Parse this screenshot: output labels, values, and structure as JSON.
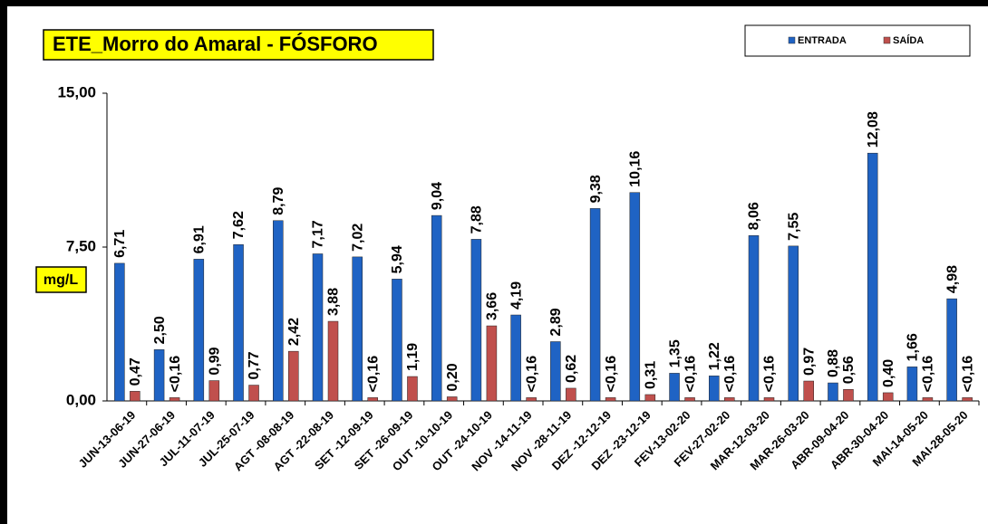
{
  "chart_data": {
    "type": "bar",
    "title": "ETE_Morro do Amaral - FÓSFORO",
    "y_label": "mg/L",
    "categories": [
      "JUN-13-06-19",
      "JUN-27-06-19",
      "JUL-11-07-19",
      "JUL-25-07-19",
      "AGT -08-08-19",
      "AGT -22-08-19",
      "SET -12-09-19",
      "SET -26-09-19",
      "OUT -10-10-19",
      "OUT -24-10-19",
      "NOV -14-11-19",
      "NOV -28-11-19",
      "DEZ -12-12-19",
      "DEZ -23-12-19",
      "FEV-13-02-20",
      "FEV-27-02-20",
      "MAR-12-03-20",
      "MAR-26-03-20",
      "ABR-09-04-20",
      "ABR-30-04-20",
      "MAI-14-05-20",
      "MAI-28-05-20"
    ],
    "series": [
      {
        "name": "ENTRADA",
        "color": "#1f63c4",
        "values": [
          6.71,
          2.5,
          6.91,
          7.62,
          8.79,
          7.17,
          7.02,
          5.94,
          9.04,
          7.88,
          4.19,
          2.89,
          9.38,
          10.16,
          1.35,
          1.22,
          8.06,
          7.55,
          0.88,
          12.08,
          1.66,
          4.98
        ],
        "value_labels": [
          "6,71",
          "2,50",
          "6,91",
          "7,62",
          "8,79",
          "7,17",
          "7,02",
          "5,94",
          "9,04",
          "7,88",
          "4,19",
          "2,89",
          "9,38",
          "10,16",
          "1,35",
          "1,22",
          "8,06",
          "7,55",
          "0,88",
          "12,08",
          "1,66",
          "4,98"
        ]
      },
      {
        "name": "SAÍDA",
        "color": "#c0504d",
        "values": [
          0.47,
          0.16,
          0.99,
          0.77,
          2.42,
          3.88,
          0.16,
          1.19,
          0.2,
          3.66,
          0.16,
          0.62,
          0.16,
          0.31,
          0.16,
          0.16,
          0.16,
          0.97,
          0.56,
          0.4,
          0.16,
          0.16
        ],
        "value_labels": [
          "0,47",
          "<0,16",
          "0,99",
          "0,77",
          "2,42",
          "3,88",
          "<0,16",
          "1,19",
          "0,20",
          "3,66",
          "<0,16",
          "0,62",
          "<0,16",
          "0,31",
          "<0,16",
          "<0,16",
          "<0,16",
          "0,97",
          "0,56",
          "0,40",
          "<0,16",
          "<0,16"
        ]
      }
    ],
    "ylim": [
      0,
      15
    ],
    "yticks": [
      {
        "value": 0,
        "label": "0,00"
      },
      {
        "value": 7.5,
        "label": "7,50"
      },
      {
        "value": 15,
        "label": "15,00"
      }
    ]
  }
}
